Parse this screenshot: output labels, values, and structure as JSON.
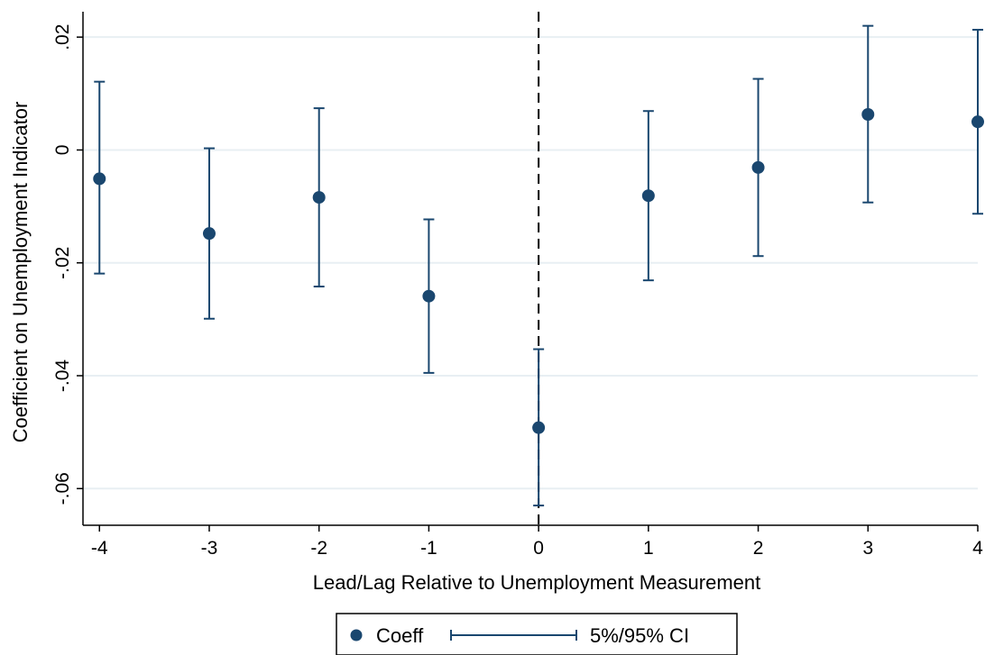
{
  "chart_data": {
    "type": "scatter",
    "title": "",
    "xlabel": "Lead/Lag Relative to Unemployment Measurement",
    "ylabel": "Coefficient on Unemployment Indicator",
    "x": [
      -4,
      -3,
      -2,
      -1,
      0,
      1,
      2,
      3,
      4
    ],
    "series": [
      {
        "name": "Coeff",
        "values": [
          -0.0051,
          -0.0148,
          -0.0084,
          -0.0259,
          -0.0492,
          -0.0081,
          -0.0031,
          0.0063,
          0.005
        ]
      },
      {
        "name": "5%/95% CI",
        "lower": [
          -0.0219,
          -0.0299,
          -0.0242,
          -0.0395,
          -0.063,
          -0.0231,
          -0.0188,
          -0.0093,
          -0.0113
        ],
        "upper": [
          0.0121,
          0.0003,
          0.0074,
          -0.0123,
          -0.0353,
          0.0069,
          0.0126,
          0.022,
          0.0213
        ]
      }
    ],
    "xticks": [
      "-4",
      "-3",
      "-2",
      "-1",
      "0",
      "1",
      "2",
      "3",
      "4"
    ],
    "yticks": [
      {
        "value": 0.02,
        "label": ".02"
      },
      {
        "value": 0,
        "label": "0"
      },
      {
        "value": -0.02,
        "label": "-.02"
      },
      {
        "value": -0.04,
        "label": "-.04"
      },
      {
        "value": -0.06,
        "label": "-.06"
      }
    ],
    "xlim": [
      -4.15,
      4
    ],
    "ylim": [
      -0.0665,
      0.0245
    ],
    "reference_line": {
      "x": 0,
      "style": "dashed"
    },
    "grid": true,
    "legend_placement": "bottom-center",
    "colors": {
      "marker": "#1a476f",
      "grid": "#e8eff3",
      "axis": "#000000",
      "reference": "#000000"
    }
  }
}
